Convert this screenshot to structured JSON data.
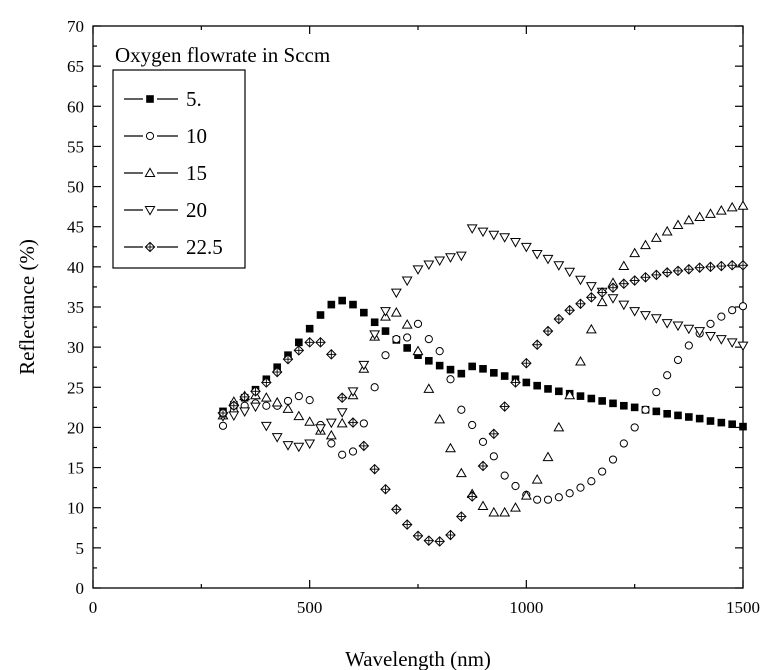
{
  "chart_data": {
    "type": "scatter",
    "title": "",
    "xlabel": "Wavelength (nm)",
    "ylabel": "Reflectance (%)",
    "xlim": [
      0,
      1500
    ],
    "ylim": [
      0,
      70
    ],
    "xticks": [
      0,
      500,
      1000,
      1500
    ],
    "yticks": [
      0,
      5,
      10,
      15,
      20,
      25,
      30,
      35,
      40,
      45,
      50,
      55,
      60,
      65,
      70
    ],
    "grid": false,
    "legend": {
      "title": "Oxygen flowrate in Sccm",
      "placement": "top-left"
    },
    "series": [
      {
        "name": "5.",
        "marker": "filled-square",
        "x": [
          300,
          325,
          350,
          375,
          400,
          425,
          450,
          475,
          500,
          525,
          550,
          575,
          600,
          625,
          650,
          675,
          700,
          725,
          750,
          775,
          800,
          825,
          850,
          875,
          900,
          925,
          950,
          975,
          1000,
          1025,
          1050,
          1075,
          1100,
          1125,
          1150,
          1175,
          1200,
          1225,
          1250,
          1275,
          1300,
          1325,
          1350,
          1375,
          1400,
          1425,
          1450,
          1475,
          1500
        ],
        "y": [
          22,
          22.8,
          23.7,
          24.7,
          26,
          27.5,
          29,
          30.6,
          32.3,
          34,
          35.3,
          35.8,
          35.3,
          34.3,
          33.1,
          32,
          30.9,
          29.9,
          29,
          28.3,
          27.7,
          27.2,
          26.7,
          27.6,
          27.3,
          26.8,
          26.4,
          26,
          25.6,
          25.2,
          24.8,
          24.5,
          24.2,
          23.9,
          23.6,
          23.3,
          23,
          22.7,
          22.5,
          22.2,
          22,
          21.7,
          21.5,
          21.3,
          21.1,
          20.8,
          20.6,
          20.4,
          20.1
        ]
      },
      {
        "name": "10",
        "marker": "open-circle",
        "x": [
          300,
          325,
          350,
          375,
          400,
          425,
          450,
          475,
          500,
          525,
          550,
          575,
          600,
          625,
          650,
          675,
          700,
          725,
          750,
          775,
          800,
          825,
          850,
          875,
          900,
          925,
          950,
          975,
          1000,
          1025,
          1050,
          1075,
          1100,
          1125,
          1150,
          1175,
          1200,
          1225,
          1250,
          1275,
          1300,
          1325,
          1350,
          1375,
          1400,
          1425,
          1450,
          1475,
          1500
        ],
        "y": [
          20.2,
          22,
          22.7,
          23,
          22.7,
          22.7,
          23.3,
          23.9,
          23.4,
          20.3,
          18,
          16.6,
          17,
          20.5,
          25,
          29,
          31,
          31.2,
          32.9,
          31,
          29.5,
          26,
          22.2,
          20.3,
          18.2,
          16.4,
          14,
          12.7,
          11.6,
          11,
          11,
          11.3,
          11.8,
          12.5,
          13.3,
          14.5,
          16,
          18,
          20,
          22.2,
          24.4,
          26.5,
          28.4,
          30.2,
          31.7,
          32.9,
          33.8,
          34.6,
          35.1
        ]
      },
      {
        "name": "15",
        "marker": "open-triangle-up",
        "x": [
          300,
          325,
          350,
          375,
          400,
          425,
          450,
          475,
          500,
          525,
          550,
          575,
          600,
          625,
          650,
          675,
          700,
          725,
          750,
          775,
          800,
          825,
          850,
          875,
          900,
          925,
          950,
          975,
          1000,
          1025,
          1050,
          1075,
          1100,
          1125,
          1150,
          1175,
          1200,
          1225,
          1250,
          1275,
          1300,
          1325,
          1350,
          1375,
          1400,
          1425,
          1450,
          1475,
          1500
        ],
        "y": [
          21.5,
          23.2,
          23.9,
          24,
          23.7,
          23.1,
          22.3,
          21.4,
          20.7,
          19.6,
          19,
          20.5,
          24,
          27.3,
          31.3,
          33.8,
          34.3,
          32.8,
          29.5,
          24.8,
          21,
          17.4,
          14.3,
          11.7,
          10.2,
          9.4,
          9.4,
          10,
          11.5,
          13.5,
          16.3,
          20,
          24,
          28.2,
          32.2,
          35.6,
          38,
          40.1,
          41.7,
          42.7,
          43.6,
          44.4,
          45.2,
          45.8,
          46.2,
          46.6,
          47,
          47.4,
          47.6
        ]
      },
      {
        "name": "20",
        "marker": "open-triangle-down",
        "x": [
          300,
          325,
          350,
          375,
          400,
          425,
          450,
          475,
          500,
          525,
          550,
          575,
          600,
          625,
          650,
          675,
          700,
          725,
          750,
          775,
          800,
          825,
          850,
          875,
          900,
          925,
          950,
          975,
          1000,
          1025,
          1050,
          1075,
          1100,
          1125,
          1150,
          1175,
          1200,
          1225,
          1250,
          1275,
          1300,
          1325,
          1350,
          1375,
          1400,
          1425,
          1450,
          1475,
          1500
        ],
        "y": [
          21.4,
          21.5,
          22,
          22.6,
          20.2,
          18.8,
          17.8,
          17.6,
          18,
          19.9,
          20.6,
          21.9,
          24.5,
          27.8,
          31.6,
          34.5,
          36.8,
          38.3,
          39.7,
          40.3,
          40.8,
          41.2,
          41.4,
          44.8,
          44.4,
          44,
          43.7,
          43.1,
          42.5,
          41.6,
          41,
          40.2,
          39.4,
          38.4,
          37.6,
          36.9,
          36.1,
          35.3,
          34.5,
          34,
          33.6,
          33,
          32.7,
          32.3,
          32,
          31.4,
          31,
          30.6,
          30.2
        ]
      },
      {
        "name": "22.5",
        "marker": "open-diamond-cross",
        "x": [
          300,
          325,
          350,
          375,
          400,
          425,
          450,
          475,
          500,
          525,
          550,
          575,
          600,
          625,
          650,
          675,
          700,
          725,
          750,
          775,
          800,
          825,
          850,
          875,
          900,
          925,
          950,
          975,
          1000,
          1025,
          1050,
          1075,
          1100,
          1125,
          1150,
          1175,
          1200,
          1225,
          1250,
          1275,
          1300,
          1325,
          1350,
          1375,
          1400,
          1425,
          1450,
          1475,
          1500
        ],
        "y": [
          21.8,
          22.7,
          23.8,
          24.5,
          25.6,
          26.9,
          28.5,
          29.6,
          30.6,
          30.6,
          29.1,
          23.7,
          20.6,
          17.7,
          14.8,
          12.3,
          9.8,
          7.9,
          6.5,
          5.9,
          5.8,
          6.6,
          8.9,
          11.4,
          15.2,
          19.2,
          22.6,
          25.6,
          28,
          30.3,
          32,
          33.5,
          34.6,
          35.4,
          36.2,
          36.8,
          37.4,
          37.9,
          38.3,
          38.7,
          39,
          39.3,
          39.5,
          39.7,
          39.9,
          40,
          40.1,
          40.2,
          40.2
        ]
      }
    ]
  }
}
